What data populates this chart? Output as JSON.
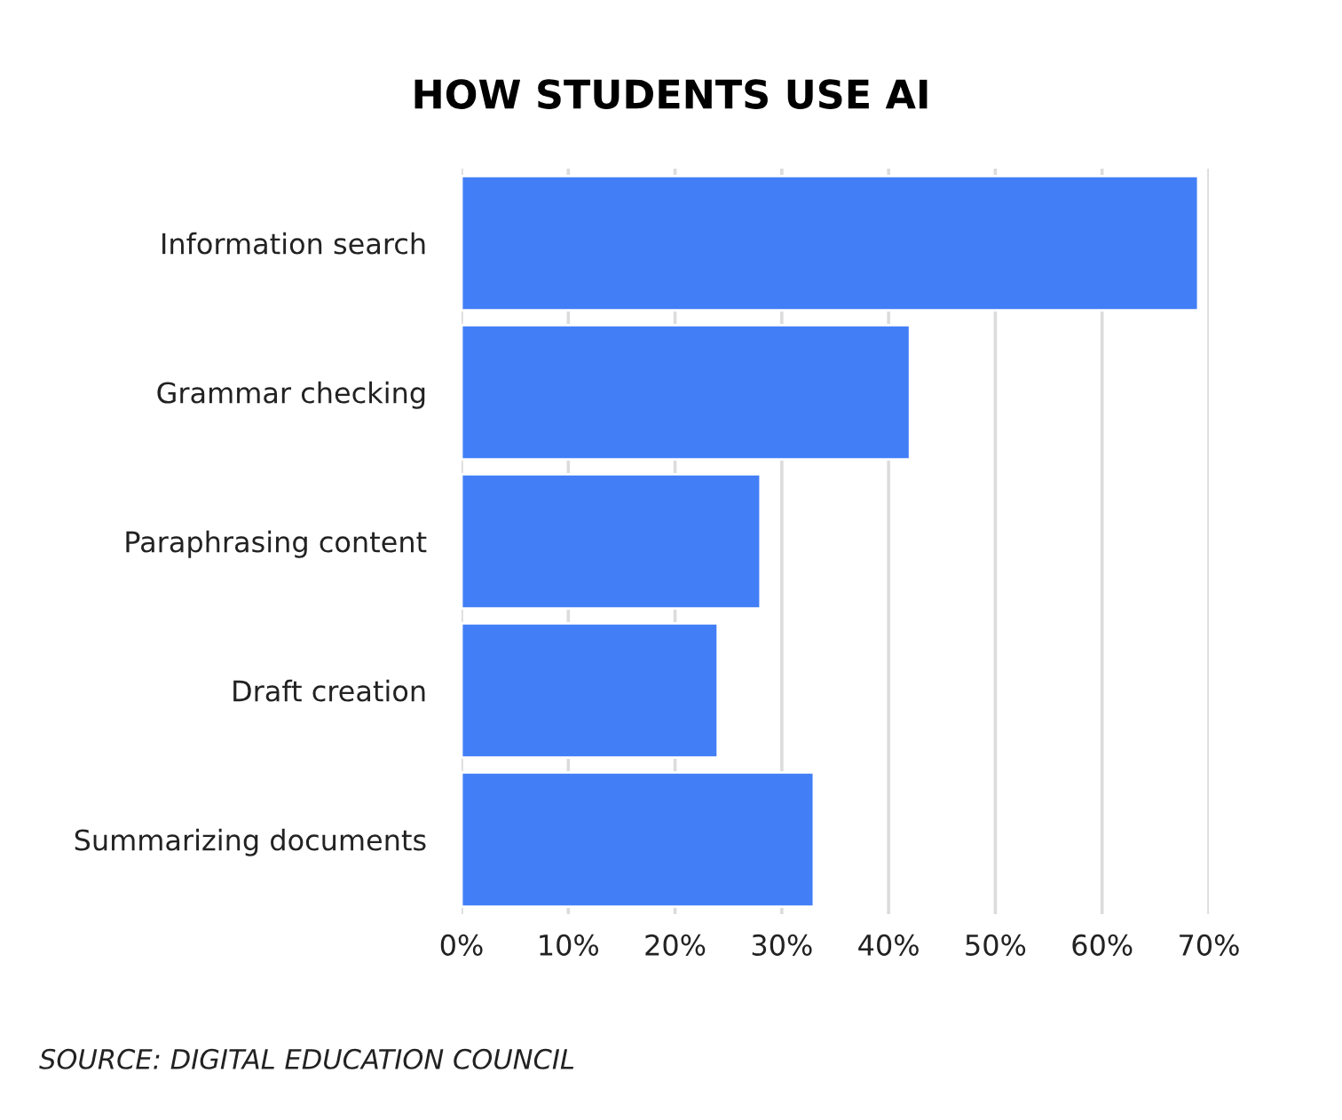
{
  "chart_data": {
    "type": "bar",
    "orientation": "horizontal",
    "title": "HOW STUDENTS USE AI",
    "categories": [
      "Information search",
      "Grammar checking",
      "Paraphrasing content",
      "Draft creation",
      "Summarizing documents"
    ],
    "values": [
      69,
      42,
      28,
      24,
      33
    ],
    "color": "#427ef6",
    "xlim": [
      0,
      70
    ],
    "xticks": [
      {
        "value": 0,
        "label": "0%"
      },
      {
        "value": 10,
        "label": "10%"
      },
      {
        "value": 20,
        "label": "20%"
      },
      {
        "value": 30,
        "label": "30%"
      },
      {
        "value": 40,
        "label": "40%"
      },
      {
        "value": 50,
        "label": "50%"
      },
      {
        "value": 60,
        "label": "60%"
      },
      {
        "value": 70,
        "label": "70%"
      }
    ],
    "grid": "x",
    "legend": false,
    "annotations": [
      "SOURCE: DIGITAL EDUCATION COUNCIL"
    ]
  }
}
